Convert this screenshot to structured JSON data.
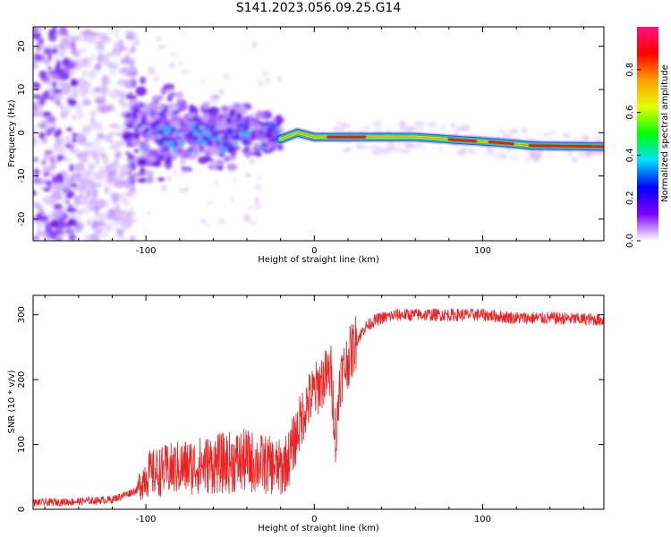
{
  "title": "S141.2023.056.09.25.G14",
  "chart_data": [
    {
      "type": "heatmap",
      "xlabel": "Height of straight line (km)",
      "ylabel": "Frequency (Hz)",
      "xlim": [
        -167,
        172
      ],
      "ylim": [
        -25,
        24.5
      ],
      "xticks": [
        -100,
        0,
        100
      ],
      "yticks": [
        -20,
        -10,
        0,
        10,
        20
      ],
      "colorbar": {
        "label": "Normalized spectral amplitude",
        "range": [
          0.0,
          1.0
        ],
        "ticks": [
          0.0,
          0.2,
          0.4,
          0.6,
          0.8
        ],
        "tick_labels": [
          "0.0",
          "0.2",
          "0.4",
          "0.6",
          "0.8"
        ],
        "colormap": [
          "#ffffff",
          "#8000ff",
          "#0000ff",
          "#00e0ff",
          "#00ff00",
          "#e0ff00",
          "#ffa000",
          "#ff0000",
          "#ff1080"
        ]
      },
      "ridge": {
        "x": [
          -20,
          -10,
          0,
          20,
          60,
          90,
          110,
          130,
          172
        ],
        "freq": [
          -1.5,
          0,
          -1,
          -1,
          -1,
          -1.8,
          -2.3,
          -3,
          -3.2
        ]
      }
    },
    {
      "type": "line",
      "xlabel": "Height of straight line (km)",
      "ylabel": "SNR (10 * v/v)",
      "xlim": [
        -167,
        172
      ],
      "ylim": [
        0,
        330
      ],
      "xticks": [
        -100,
        0,
        100
      ],
      "yticks": [
        0,
        100,
        200,
        300
      ],
      "line_color": "#ee2222",
      "series": [
        {
          "x": [
            -167,
            -140,
            -120,
            -105,
            -100,
            -80,
            -60,
            -40,
            -20,
            -15,
            -10,
            -5,
            0,
            5,
            10,
            13,
            15,
            20,
            25,
            30,
            35,
            40,
            50,
            60,
            80,
            100,
            120,
            140,
            172
          ],
          "values": [
            10,
            12,
            15,
            30,
            50,
            60,
            65,
            70,
            60,
            80,
            120,
            160,
            180,
            200,
            210,
            100,
            200,
            230,
            260,
            280,
            290,
            295,
            300,
            300,
            300,
            300,
            295,
            295,
            292
          ]
        }
      ]
    }
  ]
}
